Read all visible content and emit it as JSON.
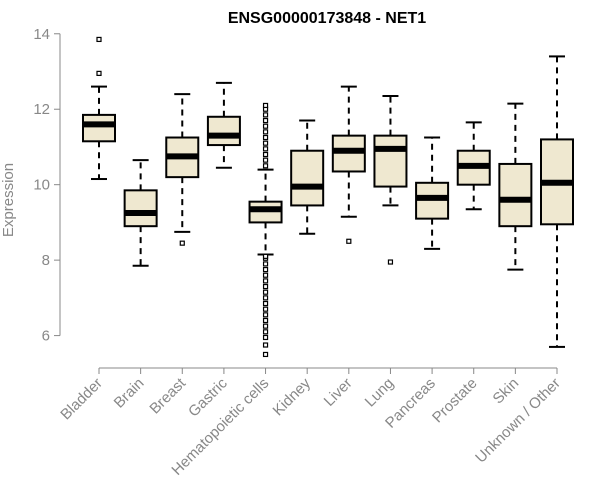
{
  "chart_data": {
    "type": "boxplot",
    "title": "ENSG00000173848 - NET1",
    "xlabel": "",
    "ylabel": "Expression",
    "ylim": [
      5.3,
      14.1
    ],
    "yticks": [
      6,
      8,
      10,
      12,
      14
    ],
    "box_color": "#efe8d0",
    "line_color": "#000000",
    "axis_color": "#888888",
    "categories": [
      "Bladder",
      "Brain",
      "Breast",
      "Gastric",
      "Hematopoietic cells",
      "Kidney",
      "Liver",
      "Lung",
      "Pancreas",
      "Prostate",
      "Skin",
      "Unknown / Other"
    ],
    "boxes": [
      {
        "name": "Bladder",
        "whisker_low": 10.15,
        "q1": 11.15,
        "median": 11.6,
        "q3": 11.85,
        "whisker_high": 12.6,
        "outliers": [
          12.95,
          13.85
        ]
      },
      {
        "name": "Brain",
        "whisker_low": 7.85,
        "q1": 8.9,
        "median": 9.25,
        "q3": 9.85,
        "whisker_high": 10.65,
        "outliers": []
      },
      {
        "name": "Breast",
        "whisker_low": 8.75,
        "q1": 10.2,
        "median": 10.75,
        "q3": 11.25,
        "whisker_high": 12.4,
        "outliers": [
          8.45
        ]
      },
      {
        "name": "Gastric",
        "whisker_low": 10.45,
        "q1": 11.05,
        "median": 11.3,
        "q3": 11.8,
        "whisker_high": 12.7,
        "outliers": []
      },
      {
        "name": "Hematopoietic cells",
        "whisker_low": 8.15,
        "q1": 9.0,
        "median": 9.35,
        "q3": 9.55,
        "whisker_high": 10.4,
        "outliers": [
          5.5,
          5.75,
          5.95,
          6.1,
          6.25,
          6.4,
          6.55,
          6.7,
          6.85,
          7.0,
          7.15,
          7.3,
          7.45,
          7.6,
          7.75,
          7.9,
          8.05,
          8.1,
          10.5,
          10.65,
          10.8,
          10.95,
          11.1,
          11.25,
          11.4,
          11.55,
          11.7,
          11.85,
          12.0,
          12.1
        ]
      },
      {
        "name": "Kidney",
        "whisker_low": 8.7,
        "q1": 9.45,
        "median": 9.95,
        "q3": 10.9,
        "whisker_high": 11.7,
        "outliers": []
      },
      {
        "name": "Liver",
        "whisker_low": 9.15,
        "q1": 10.35,
        "median": 10.9,
        "q3": 11.3,
        "whisker_high": 12.6,
        "outliers": [
          8.5
        ]
      },
      {
        "name": "Lung",
        "whisker_low": 9.45,
        "q1": 9.95,
        "median": 10.95,
        "q3": 11.3,
        "whisker_high": 12.35,
        "outliers": [
          7.95
        ]
      },
      {
        "name": "Pancreas",
        "whisker_low": 8.3,
        "q1": 9.1,
        "median": 9.65,
        "q3": 10.05,
        "whisker_high": 11.25,
        "outliers": []
      },
      {
        "name": "Prostate",
        "whisker_low": 9.35,
        "q1": 10.0,
        "median": 10.5,
        "q3": 10.9,
        "whisker_high": 11.65,
        "outliers": []
      },
      {
        "name": "Skin",
        "whisker_low": 7.75,
        "q1": 8.9,
        "median": 9.6,
        "q3": 10.55,
        "whisker_high": 12.15,
        "outliers": []
      },
      {
        "name": "Unknown / Other",
        "whisker_low": 5.7,
        "q1": 8.95,
        "median": 10.05,
        "q3": 11.2,
        "whisker_high": 13.4,
        "outliers": []
      }
    ]
  }
}
